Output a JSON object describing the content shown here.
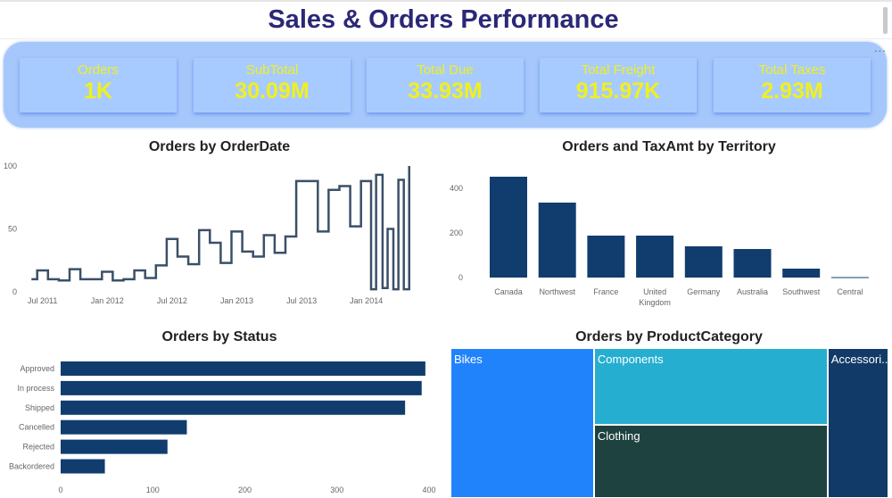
{
  "header": {
    "title": "Sales & Orders Performance",
    "more_label": "..."
  },
  "kpis": [
    {
      "label": "Orders",
      "value": "1K"
    },
    {
      "label": "SubTotal",
      "value": "30.09M"
    },
    {
      "label": "Total Due",
      "value": "33.93M"
    },
    {
      "label": "Total Freight",
      "value": "915.97K"
    },
    {
      "label": "Total Taxes",
      "value": "2.93M"
    }
  ],
  "colors": {
    "title": "#2b2877",
    "kpi_panel": "#a5c7fb",
    "kpi_text": "#f0f01e",
    "bar": "#113d6e",
    "line": "#3b5068"
  },
  "chart_data": [
    {
      "type": "line",
      "title": "Orders by OrderDate",
      "ylim": [
        0,
        100
      ],
      "yticks": [
        "0",
        "50",
        "100"
      ],
      "xticks": [
        {
          "date": "2011-07-01",
          "label": "Jul 2011"
        },
        {
          "date": "2012-01-01",
          "label": "Jan 2012"
        },
        {
          "date": "2012-07-01",
          "label": "Jul 2012"
        },
        {
          "date": "2013-01-01",
          "label": "Jan 2013"
        },
        {
          "date": "2013-07-01",
          "label": "Jul 2013"
        },
        {
          "date": "2014-01-01",
          "label": "Jan 2014"
        }
      ],
      "points": [
        [
          "2011-06-15",
          10
        ],
        [
          "2011-07-01",
          17
        ],
        [
          "2011-08-01",
          10
        ],
        [
          "2011-09-01",
          9
        ],
        [
          "2011-10-01",
          18
        ],
        [
          "2011-11-01",
          10
        ],
        [
          "2011-12-01",
          10
        ],
        [
          "2012-01-01",
          16
        ],
        [
          "2012-02-01",
          9
        ],
        [
          "2012-03-01",
          10
        ],
        [
          "2012-04-01",
          17
        ],
        [
          "2012-05-01",
          11
        ],
        [
          "2012-06-01",
          21
        ],
        [
          "2012-07-01",
          42
        ],
        [
          "2012-08-01",
          28
        ],
        [
          "2012-09-01",
          22
        ],
        [
          "2012-10-01",
          49
        ],
        [
          "2012-11-01",
          39
        ],
        [
          "2012-12-01",
          23
        ],
        [
          "2013-01-01",
          48
        ],
        [
          "2013-02-01",
          32
        ],
        [
          "2013-03-01",
          28
        ],
        [
          "2013-04-01",
          45
        ],
        [
          "2013-05-01",
          31
        ],
        [
          "2013-06-01",
          44
        ],
        [
          "2013-07-01",
          88
        ],
        [
          "2013-08-01",
          88
        ],
        [
          "2013-09-01",
          48
        ],
        [
          "2013-10-01",
          81
        ],
        [
          "2013-11-01",
          84
        ],
        [
          "2013-12-01",
          52
        ],
        [
          "2014-01-01",
          88
        ],
        [
          "2014-01-29",
          2
        ],
        [
          "2014-02-13",
          93
        ],
        [
          "2014-03-01",
          3
        ],
        [
          "2014-03-15",
          50
        ],
        [
          "2014-03-31",
          2
        ],
        [
          "2014-04-15",
          89
        ],
        [
          "2014-04-30",
          2
        ],
        [
          "2014-05-15",
          100
        ]
      ]
    },
    {
      "type": "bar",
      "title": "Orders and TaxAmt by Territory",
      "ylim": [
        0,
        450
      ],
      "yticks": [
        "0",
        "200",
        "400"
      ],
      "categories": [
        "Canada",
        "Northwest",
        "France",
        "United Kingdom",
        "Germany",
        "Australia",
        "Southwest",
        "Central"
      ],
      "values": [
        452,
        336,
        188,
        188,
        140,
        128,
        40,
        2
      ]
    },
    {
      "type": "bar",
      "orientation": "horizontal",
      "title": "Orders by Status",
      "xlim": [
        0,
        400
      ],
      "xticks": [
        "0",
        "100",
        "200",
        "300",
        "400"
      ],
      "categories": [
        "Approved",
        "In process",
        "Shipped",
        "Cancelled",
        "Rejected",
        "Backordered"
      ],
      "values": [
        396,
        392,
        374,
        137,
        116,
        48
      ]
    },
    {
      "type": "treemap",
      "title": "Orders by ProductCategory",
      "categories": [
        "Bikes",
        "Components",
        "Clothing",
        "Accessori..."
      ],
      "values": [
        330,
        275,
        262,
        140
      ],
      "colors": [
        "#2183fc",
        "#26aed0",
        "#1d4240",
        "#123a68"
      ]
    }
  ]
}
